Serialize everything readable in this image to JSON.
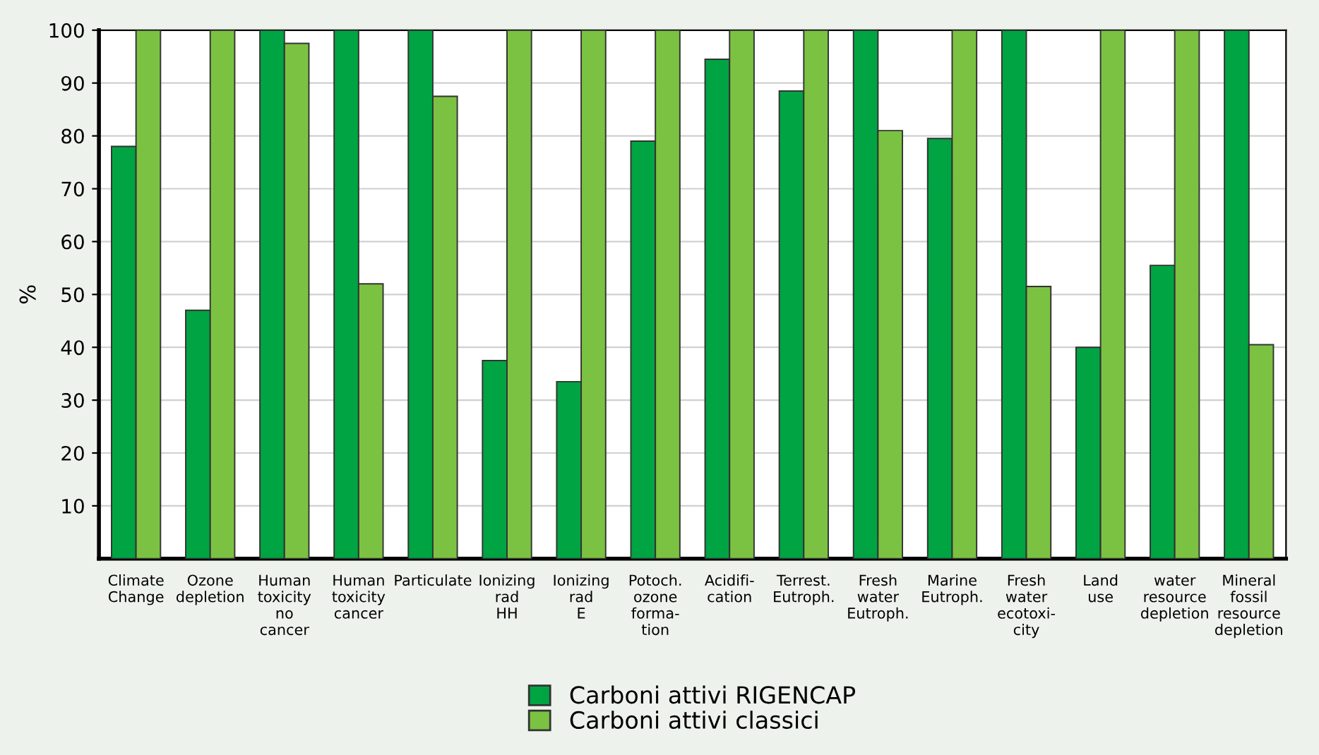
{
  "chart_data": {
    "type": "bar",
    "ylabel": "%",
    "categories": [
      "Climate\nChange",
      "Ozone\ndepletion",
      "Human\ntoxicity\nno\ncancer",
      "Human\ntoxicity\ncancer",
      "Particulate",
      "Ionizing\nrad\nHH",
      "Ionizing\nrad\nE",
      "Potoch.\nozone\nforma-\ntion",
      "Acidifi-\ncation",
      "Terrest.\nEutroph.",
      "Fresh\nwater\nEutroph.",
      "Marine\nEutroph.",
      "Fresh\nwater\necotoxi-\ncity",
      "Land\nuse",
      "water\nresource\ndepletion",
      "Mineral\nfossil\nresource\ndepletion"
    ],
    "series": [
      {
        "name": "Carboni attivi RIGENCAP",
        "color": "#00a443",
        "values": [
          78,
          47,
          100,
          100,
          100,
          37.5,
          33.5,
          79,
          94.5,
          88.5,
          100,
          79.5,
          100,
          40,
          55.5,
          100
        ]
      },
      {
        "name": "Carboni attivi classici",
        "color": "#7cc242",
        "values": [
          100,
          100,
          97.5,
          52,
          87.5,
          100,
          100,
          100,
          100,
          100,
          81,
          100,
          51.5,
          100,
          100,
          40.5
        ]
      }
    ],
    "ylim": [
      0,
      100
    ],
    "yticks": [
      10,
      20,
      30,
      40,
      50,
      60,
      70,
      80,
      90,
      100
    ],
    "grid": "y",
    "legend": "bottom"
  }
}
